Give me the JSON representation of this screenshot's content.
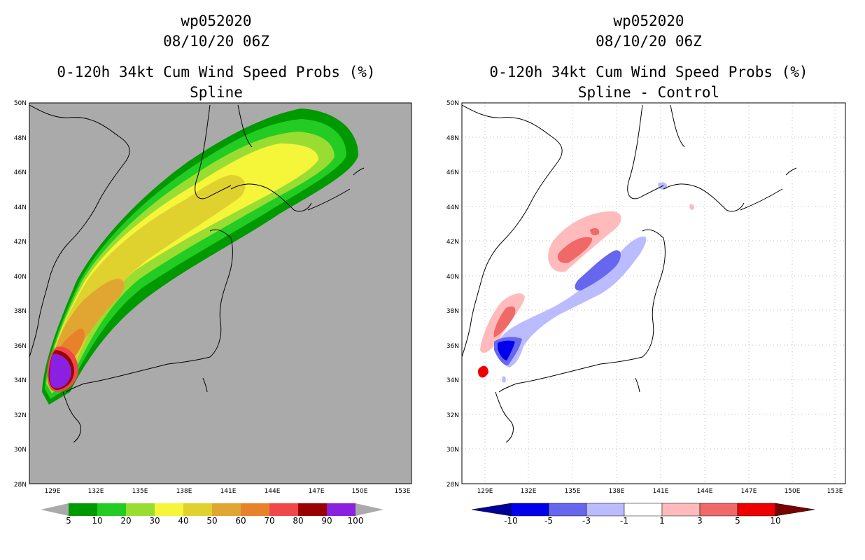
{
  "panels": [
    {
      "title_storm": "wp052020",
      "title_time": "08/10/20 06Z",
      "title_product": "0-120h 34kt Cum Wind Speed Probs (%)",
      "title_sub": "Spline",
      "background": "#aaaaaa",
      "colorbar_labels": [
        "5",
        "10",
        "20",
        "30",
        "40",
        "50",
        "60",
        "70",
        "80",
        "90",
        "100"
      ],
      "colorbar_colors": [
        "#009900",
        "#22cc22",
        "#99dd33",
        "#f5f53a",
        "#e0d22e",
        "#e0a631",
        "#e8822a",
        "#f04848",
        "#990000",
        "#8a20e0"
      ]
    },
    {
      "title_storm": "wp052020",
      "title_time": "08/10/20 06Z",
      "title_product": "0-120h 34kt Cum Wind Speed Probs (%)",
      "title_sub": "Spline - Control",
      "background": "#ffffff",
      "colorbar_labels": [
        "-10",
        "-5",
        "-3",
        "-1",
        "1",
        "3",
        "5",
        "10"
      ],
      "colorbar_colors": [
        "#0000ee",
        "#6666ee",
        "#bbbbff",
        "#ffffff",
        "#ffbbbb",
        "#f06868",
        "#ee0000"
      ],
      "colorbar_end_colors": [
        "#000099",
        "#770000"
      ]
    }
  ],
  "map_axes": {
    "lat_labels": [
      "50N",
      "48N",
      "46N",
      "44N",
      "42N",
      "40N",
      "38N",
      "36N",
      "34N",
      "32N",
      "30N",
      "28N"
    ],
    "lon_labels": [
      "129E",
      "132E",
      "135E",
      "138E",
      "141E",
      "144E",
      "147E",
      "150E",
      "153E"
    ]
  }
}
